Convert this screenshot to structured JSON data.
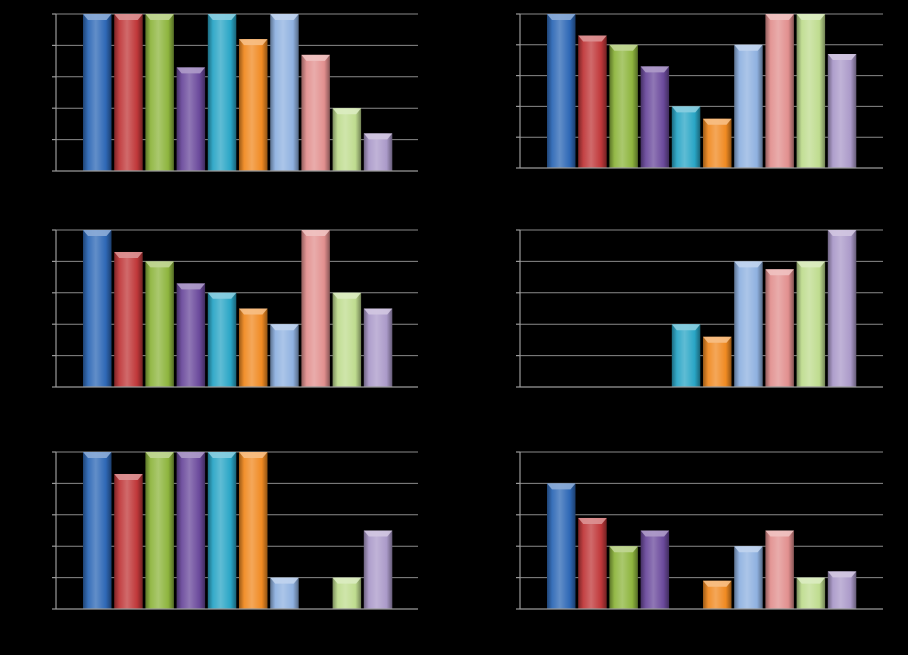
{
  "figure": {
    "background": "#000000",
    "grid_color": "#8a8a8a",
    "palette": [
      "#2e68b6",
      "#c0383a",
      "#8eb53e",
      "#6b4a9c",
      "#2aa6c6",
      "#f08a22",
      "#8fb1e0",
      "#e2908f",
      "#bfdc8f",
      "#ab9ac9"
    ]
  },
  "chart_data": [
    {
      "type": "bar",
      "position": "top-left",
      "ylim": [
        0,
        5
      ],
      "grid": true,
      "values": [
        5,
        5,
        5,
        3.3,
        5,
        4.2,
        5,
        3.7,
        2,
        1.2
      ]
    },
    {
      "type": "bar",
      "position": "top-right",
      "ylim": [
        0,
        5
      ],
      "grid": true,
      "values": [
        5,
        4.3,
        4,
        3.3,
        2,
        1.6,
        4,
        5,
        5,
        3.7
      ]
    },
    {
      "type": "bar",
      "position": "middle-left",
      "ylim": [
        0,
        5
      ],
      "grid": true,
      "values": [
        5,
        4.3,
        4,
        3.3,
        3,
        2.5,
        2,
        5,
        3,
        2.5
      ]
    },
    {
      "type": "bar",
      "position": "middle-right",
      "ylim": [
        0,
        5
      ],
      "grid": true,
      "values": [
        0,
        0,
        0,
        0,
        2,
        1.6,
        4,
        3.75,
        4,
        5
      ]
    },
    {
      "type": "bar",
      "position": "bottom-left",
      "ylim": [
        0,
        5
      ],
      "grid": true,
      "values": [
        5,
        4.3,
        5,
        5,
        5,
        5,
        1,
        0,
        1,
        2.5
      ]
    },
    {
      "type": "bar",
      "position": "bottom-right",
      "ylim": [
        0,
        5
      ],
      "grid": true,
      "values": [
        4,
        2.9,
        2,
        2.5,
        0,
        0.9,
        2,
        2.5,
        1,
        1.2
      ]
    }
  ]
}
